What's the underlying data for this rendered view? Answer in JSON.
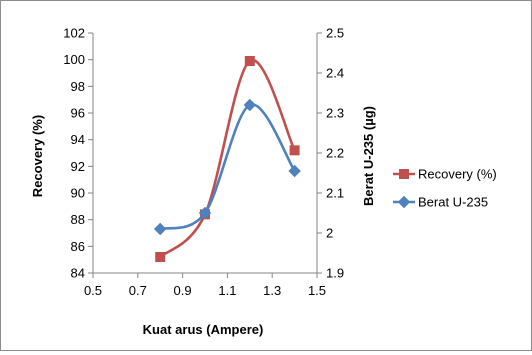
{
  "chart_data": {
    "type": "line",
    "xlabel": "Kuat arus (Ampere)",
    "ylabel": "Recovery  (%)",
    "y2label": "Berat U-235 (µg)",
    "xlim": [
      0.5,
      1.5
    ],
    "ylim": [
      84,
      102
    ],
    "y2lim": [
      1.9,
      2.5
    ],
    "x_ticks": [
      "0.5",
      "0.7",
      "0.9",
      "1.1",
      "1.3",
      "1.5"
    ],
    "y_ticks": [
      "84",
      "86",
      "88",
      "90",
      "92",
      "94",
      "96",
      "98",
      "100",
      "102"
    ],
    "y2_ticks": [
      "1.9",
      "2",
      "2.1",
      "2.2",
      "2.3",
      "2.4",
      "2.5"
    ],
    "grid": false,
    "legend_position": "right",
    "series": [
      {
        "name": "Recovery (%)",
        "axis": "left",
        "color": "#c0504d",
        "marker": "square",
        "smooth": true,
        "x": [
          0.8,
          1.0,
          1.2,
          1.4
        ],
        "y": [
          85.2,
          88.4,
          99.9,
          93.2
        ]
      },
      {
        "name": "Berat U-235",
        "axis": "right",
        "color": "#4f81bd",
        "marker": "diamond",
        "smooth": true,
        "x": [
          0.8,
          1.0,
          1.2,
          1.4
        ],
        "y": [
          2.01,
          2.05,
          2.32,
          2.155
        ]
      }
    ]
  }
}
